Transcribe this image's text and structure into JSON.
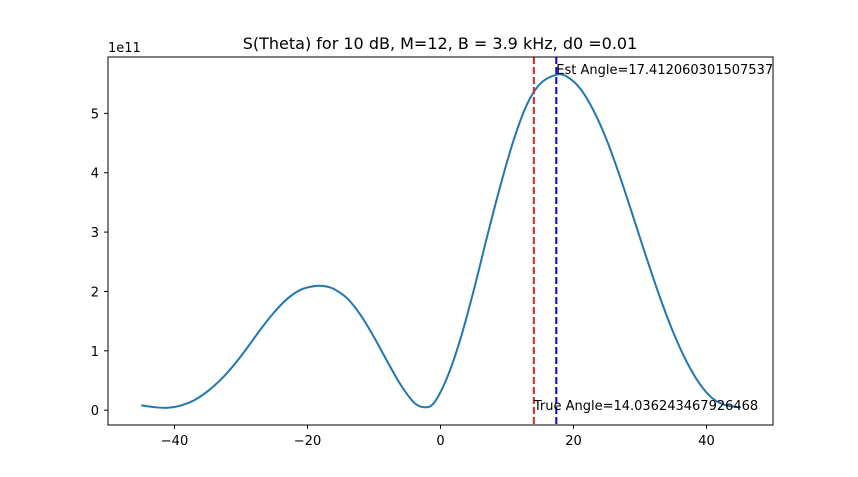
{
  "chart_data": {
    "type": "line",
    "title": "S(Theta) for 10 dB, M=12, B = 3.9 kHz, d0 =0.01",
    "xlabel": "",
    "ylabel": "",
    "y_offset_label": "1e11",
    "xlim": [
      -50,
      50
    ],
    "ylim": [
      -0.25,
      5.95
    ],
    "xticks": [
      -40,
      -20,
      0,
      20,
      40
    ],
    "xtick_labels": [
      "−40",
      "−20",
      "0",
      "20",
      "40"
    ],
    "yticks": [
      0,
      1,
      2,
      3,
      4,
      5
    ],
    "ytick_labels": [
      "0",
      "1",
      "2",
      "3",
      "4",
      "5"
    ],
    "grid": false,
    "series": [
      {
        "color": "#1f77b4",
        "x": [
          -45,
          -43,
          -41,
          -39,
          -37,
          -35,
          -33,
          -31,
          -29,
          -27,
          -25,
          -23,
          -21,
          -19,
          -17.5,
          -16,
          -14,
          -12,
          -10,
          -8,
          -6,
          -4,
          -2.5,
          -1,
          1,
          3,
          5,
          7,
          9,
          11,
          13,
          15,
          17.4,
          19,
          21,
          23,
          25,
          27,
          29,
          31,
          33,
          35,
          37,
          39,
          41,
          43,
          45
        ],
        "y": [
          0.08,
          0.05,
          0.04,
          0.08,
          0.17,
          0.32,
          0.52,
          0.77,
          1.06,
          1.37,
          1.65,
          1.88,
          2.03,
          2.09,
          2.09,
          2.04,
          1.88,
          1.6,
          1.23,
          0.82,
          0.43,
          0.13,
          0.05,
          0.12,
          0.55,
          1.2,
          2.02,
          2.92,
          3.78,
          4.55,
          5.15,
          5.5,
          5.65,
          5.62,
          5.42,
          5.05,
          4.55,
          3.93,
          3.25,
          2.56,
          1.9,
          1.31,
          0.82,
          0.44,
          0.19,
          0.08,
          0.05
        ]
      }
    ],
    "vlines": [
      {
        "x": 14.036243467926468,
        "color": "#d62728",
        "style": "dashed",
        "label": "True Angle=14.036243467926468"
      },
      {
        "x": 17.412060301507537,
        "color": "#0000ff",
        "style": "dashed",
        "label": "Est Angle=17.412060301507537"
      }
    ]
  }
}
